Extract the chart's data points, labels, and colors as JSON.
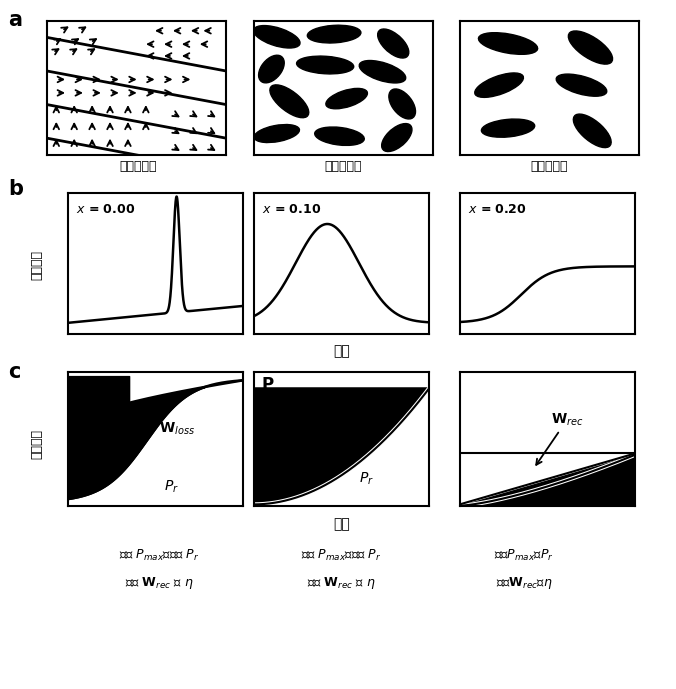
{
  "fig_width": 6.76,
  "fig_height": 6.89,
  "bg_color": "#ffffff",
  "ellipses_cross": [
    [
      0.13,
      0.88,
      0.28,
      0.13,
      -25
    ],
    [
      0.45,
      0.9,
      0.3,
      0.13,
      5
    ],
    [
      0.78,
      0.83,
      0.25,
      0.12,
      -55
    ],
    [
      0.1,
      0.64,
      0.22,
      0.12,
      65
    ],
    [
      0.4,
      0.67,
      0.32,
      0.13,
      -5
    ],
    [
      0.72,
      0.62,
      0.28,
      0.13,
      -25
    ],
    [
      0.2,
      0.4,
      0.3,
      0.13,
      -50
    ],
    [
      0.52,
      0.42,
      0.25,
      0.12,
      25
    ],
    [
      0.83,
      0.38,
      0.24,
      0.12,
      -65
    ],
    [
      0.13,
      0.16,
      0.26,
      0.12,
      15
    ],
    [
      0.48,
      0.14,
      0.28,
      0.13,
      -10
    ],
    [
      0.8,
      0.13,
      0.24,
      0.12,
      55
    ]
  ],
  "ellipses_relax": [
    [
      0.27,
      0.83,
      0.34,
      0.14,
      -15
    ],
    [
      0.73,
      0.8,
      0.32,
      0.14,
      -45
    ],
    [
      0.22,
      0.52,
      0.3,
      0.13,
      28
    ],
    [
      0.68,
      0.52,
      0.3,
      0.13,
      -22
    ],
    [
      0.27,
      0.2,
      0.3,
      0.13,
      8
    ],
    [
      0.74,
      0.18,
      0.3,
      0.13,
      -52
    ]
  ]
}
